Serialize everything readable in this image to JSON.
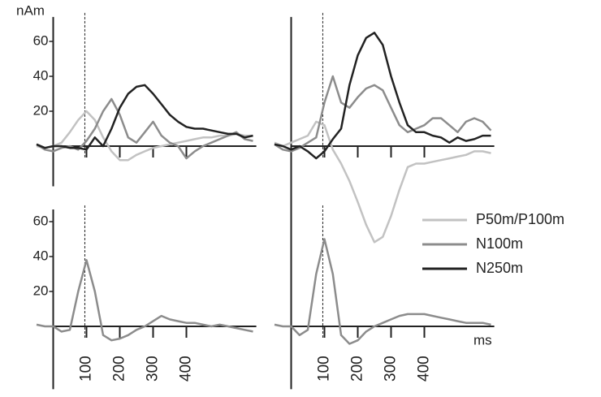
{
  "chart_data": [
    {
      "type": "line",
      "ylabel": "nAm",
      "x": [
        -50,
        -25,
        0,
        25,
        50,
        75,
        100,
        125,
        150,
        175,
        200,
        225,
        250,
        275,
        300,
        325,
        350,
        375,
        400,
        425,
        450,
        475,
        500,
        525,
        550,
        575,
        600
      ],
      "xlim": [
        -50,
        610
      ],
      "ylim": [
        -23,
        74
      ],
      "xticks": [
        100,
        200,
        300,
        400
      ],
      "xtick_labels": false,
      "yticks": [
        20,
        40,
        60
      ],
      "vline": 95,
      "series": [
        {
          "name": "P50m/P100m",
          "color": "#c2c2c2",
          "values": [
            0,
            -1,
            0,
            2,
            8,
            15,
            20,
            15,
            5,
            -3,
            -8,
            -8,
            -5,
            -3,
            -1,
            0,
            1,
            2,
            3,
            4,
            5,
            5,
            6,
            6,
            7,
            6,
            6
          ]
        },
        {
          "name": "N100m",
          "color": "#8c8c8c",
          "values": [
            1,
            -2,
            -3,
            -1,
            0,
            -2,
            3,
            10,
            20,
            27,
            18,
            5,
            2,
            8,
            14,
            6,
            2,
            0,
            -7,
            -3,
            0,
            2,
            4,
            6,
            8,
            4,
            3
          ]
        },
        {
          "name": "N250m",
          "color": "#222222",
          "values": [
            1,
            -1,
            0,
            0,
            -1,
            -1,
            -2,
            5,
            0,
            10,
            22,
            30,
            34,
            35,
            30,
            24,
            18,
            14,
            11,
            10,
            10,
            9,
            8,
            7,
            7,
            5,
            6
          ]
        }
      ]
    },
    {
      "type": "line",
      "legend": "lower right",
      "x": [
        -50,
        -25,
        0,
        25,
        50,
        75,
        100,
        125,
        150,
        175,
        200,
        225,
        250,
        275,
        300,
        325,
        350,
        375,
        400,
        425,
        450,
        475,
        500,
        525,
        550,
        575,
        600
      ],
      "xlim": [
        -50,
        610
      ],
      "ylim": [
        -57,
        74
      ],
      "xticks": [
        100,
        200,
        300,
        400
      ],
      "xtick_labels": false,
      "vline": 95,
      "series": [
        {
          "name": "P50m/P100m",
          "color": "#c2c2c2",
          "values": [
            2,
            0,
            2,
            4,
            6,
            14,
            12,
            -2,
            -10,
            -20,
            -32,
            -45,
            -55,
            -52,
            -40,
            -25,
            -12,
            -10,
            -10,
            -9,
            -8,
            -7,
            -6,
            -5,
            -3,
            -3,
            -4
          ]
        },
        {
          "name": "N100m",
          "color": "#8c8c8c",
          "values": [
            1,
            -2,
            -3,
            -1,
            2,
            5,
            25,
            40,
            25,
            22,
            28,
            33,
            35,
            32,
            22,
            12,
            8,
            10,
            12,
            16,
            16,
            12,
            8,
            14,
            16,
            14,
            9
          ]
        },
        {
          "name": "N250m",
          "color": "#222222",
          "values": [
            1,
            0,
            -2,
            0,
            -3,
            -7,
            -3,
            4,
            10,
            35,
            52,
            62,
            65,
            58,
            40,
            25,
            12,
            8,
            8,
            6,
            5,
            2,
            5,
            3,
            4,
            6,
            6
          ]
        }
      ]
    },
    {
      "type": "line",
      "x": [
        -50,
        -25,
        0,
        25,
        50,
        75,
        100,
        125,
        150,
        175,
        200,
        225,
        250,
        275,
        300,
        325,
        350,
        375,
        400,
        425,
        450,
        475,
        500,
        525,
        550,
        575,
        600
      ],
      "xlim": [
        -50,
        610
      ],
      "ylim": [
        -36,
        67
      ],
      "xticks": [
        100,
        200,
        300,
        400
      ],
      "xtick_labels": true,
      "yticks": [
        20,
        40,
        60
      ],
      "vline": 95,
      "series": [
        {
          "name": "N100m",
          "color": "#8c8c8c",
          "values": [
            1,
            0,
            0,
            -3,
            -2,
            20,
            38,
            20,
            -5,
            -8,
            -7,
            -5,
            -2,
            0,
            3,
            6,
            4,
            3,
            2,
            2,
            1,
            0,
            1,
            0,
            -1,
            -2,
            -3
          ]
        }
      ]
    },
    {
      "type": "line",
      "xlabel": "ms",
      "x": [
        -50,
        -25,
        0,
        25,
        50,
        75,
        100,
        125,
        150,
        175,
        200,
        225,
        250,
        275,
        300,
        325,
        350,
        375,
        400,
        425,
        450,
        475,
        500,
        525,
        550,
        575,
        600
      ],
      "xlim": [
        -50,
        610
      ],
      "ylim": [
        -36,
        67
      ],
      "xticks": [
        100,
        200,
        300,
        400
      ],
      "xtick_labels": true,
      "vline": 95,
      "series": [
        {
          "name": "N100m",
          "color": "#8c8c8c",
          "values": [
            1,
            0,
            0,
            -5,
            -2,
            30,
            50,
            30,
            -5,
            -10,
            -8,
            -3,
            0,
            2,
            4,
            6,
            7,
            7,
            7,
            6,
            5,
            4,
            3,
            2,
            2,
            2,
            1
          ]
        }
      ]
    }
  ]
}
